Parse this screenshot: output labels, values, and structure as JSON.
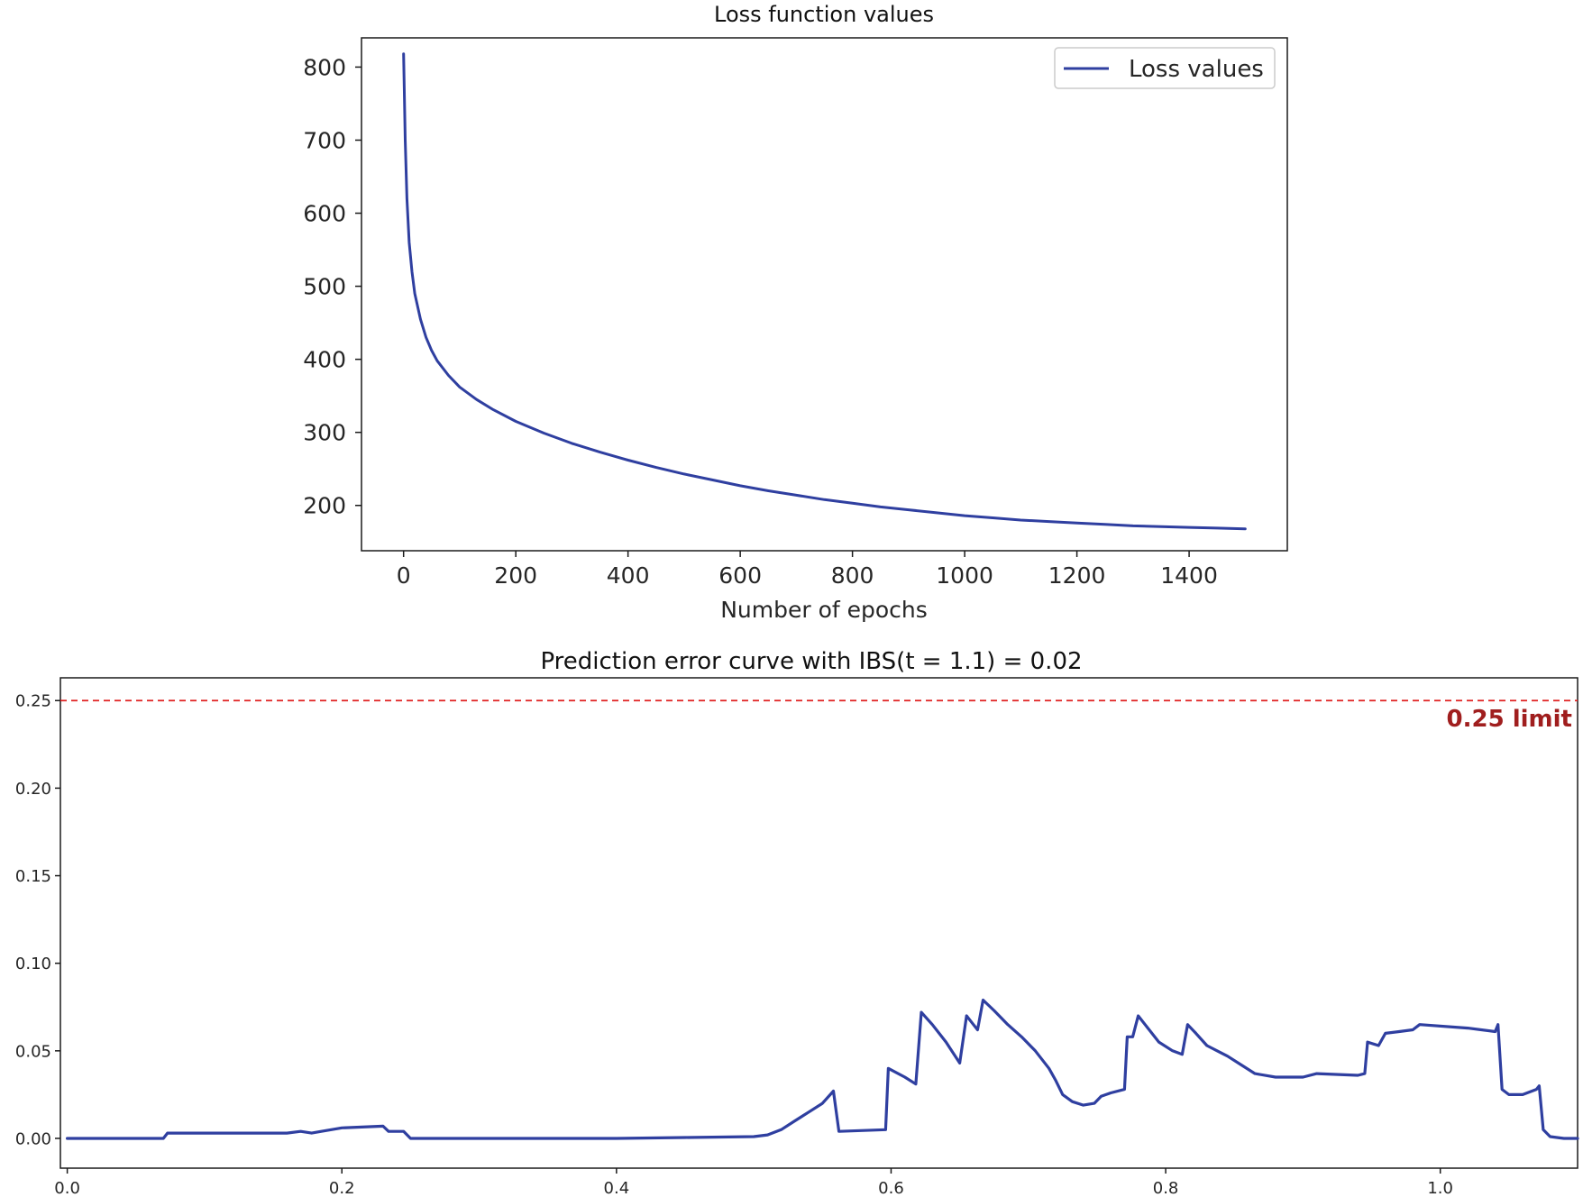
{
  "chart_data": [
    {
      "id": "loss",
      "type": "line",
      "title": "Loss function values",
      "xlabel": "Number of epochs",
      "ylabel": "",
      "xlim": [
        -75,
        1575
      ],
      "ylim": [
        138,
        840
      ],
      "xticks": [
        0,
        200,
        400,
        600,
        800,
        1000,
        1200,
        1400
      ],
      "yticks": [
        200,
        300,
        400,
        500,
        600,
        700,
        800
      ],
      "grid": false,
      "legend_position": "top-right",
      "series": [
        {
          "name": "Loss values",
          "color": "#2f3fa0",
          "points": [
            [
              0,
              818
            ],
            [
              3,
              700
            ],
            [
              6,
              620
            ],
            [
              10,
              560
            ],
            [
              15,
              520
            ],
            [
              20,
              490
            ],
            [
              30,
              455
            ],
            [
              40,
              430
            ],
            [
              50,
              412
            ],
            [
              60,
              398
            ],
            [
              80,
              378
            ],
            [
              100,
              362
            ],
            [
              130,
              345
            ],
            [
              160,
              331
            ],
            [
              200,
              315
            ],
            [
              250,
              299
            ],
            [
              300,
              285
            ],
            [
              350,
              273
            ],
            [
              400,
              262
            ],
            [
              450,
              252
            ],
            [
              500,
              243
            ],
            [
              550,
              235
            ],
            [
              600,
              227
            ],
            [
              650,
              220
            ],
            [
              700,
              214
            ],
            [
              750,
              208
            ],
            [
              800,
              203
            ],
            [
              850,
              198
            ],
            [
              900,
              194
            ],
            [
              950,
              190
            ],
            [
              1000,
              186
            ],
            [
              1050,
              183
            ],
            [
              1100,
              180
            ],
            [
              1150,
              178
            ],
            [
              1200,
              176
            ],
            [
              1250,
              174
            ],
            [
              1300,
              172
            ],
            [
              1350,
              171
            ],
            [
              1400,
              170
            ],
            [
              1450,
              169
            ],
            [
              1500,
              168
            ]
          ]
        }
      ]
    },
    {
      "id": "pec",
      "type": "line",
      "title": "Prediction error curve with IBS(t = 1.1) = 0.02",
      "xlabel": "",
      "ylabel": "",
      "xlim": [
        -0.005,
        1.1
      ],
      "ylim": [
        -0.017,
        0.263
      ],
      "xticks": [
        0.0,
        0.2,
        0.4,
        0.6,
        0.8,
        1.0
      ],
      "yticks": [
        0.0,
        0.05,
        0.1,
        0.15,
        0.2,
        0.25
      ],
      "grid": false,
      "reference_line": {
        "y": 0.25,
        "label": "0.25 limit",
        "color": "#e02020",
        "label_color": "#a01e1e",
        "style": "dashed"
      },
      "series": [
        {
          "name": "",
          "color": "#2f3fa0",
          "points": [
            [
              0.0,
              0.0
            ],
            [
              0.07,
              0.0
            ],
            [
              0.073,
              0.003
            ],
            [
              0.16,
              0.003
            ],
            [
              0.17,
              0.004
            ],
            [
              0.178,
              0.003
            ],
            [
              0.185,
              0.004
            ],
            [
              0.2,
              0.006
            ],
            [
              0.23,
              0.007
            ],
            [
              0.234,
              0.004
            ],
            [
              0.245,
              0.004
            ],
            [
              0.25,
              0.0
            ],
            [
              0.4,
              0.0
            ],
            [
              0.45,
              0.0005
            ],
            [
              0.5,
              0.001
            ],
            [
              0.51,
              0.002
            ],
            [
              0.52,
              0.005
            ],
            [
              0.53,
              0.01
            ],
            [
              0.54,
              0.015
            ],
            [
              0.55,
              0.02
            ],
            [
              0.558,
              0.027
            ],
            [
              0.562,
              0.004
            ],
            [
              0.596,
              0.005
            ],
            [
              0.598,
              0.04
            ],
            [
              0.61,
              0.035
            ],
            [
              0.618,
              0.031
            ],
            [
              0.622,
              0.072
            ],
            [
              0.63,
              0.065
            ],
            [
              0.64,
              0.055
            ],
            [
              0.65,
              0.043
            ],
            [
              0.655,
              0.07
            ],
            [
              0.66,
              0.065
            ],
            [
              0.663,
              0.062
            ],
            [
              0.667,
              0.079
            ],
            [
              0.675,
              0.073
            ],
            [
              0.685,
              0.065
            ],
            [
              0.695,
              0.058
            ],
            [
              0.705,
              0.05
            ],
            [
              0.715,
              0.04
            ],
            [
              0.72,
              0.033
            ],
            [
              0.725,
              0.025
            ],
            [
              0.732,
              0.021
            ],
            [
              0.74,
              0.019
            ],
            [
              0.748,
              0.02
            ],
            [
              0.753,
              0.024
            ],
            [
              0.76,
              0.026
            ],
            [
              0.77,
              0.028
            ],
            [
              0.772,
              0.058
            ],
            [
              0.776,
              0.058
            ],
            [
              0.78,
              0.07
            ],
            [
              0.787,
              0.063
            ],
            [
              0.795,
              0.055
            ],
            [
              0.805,
              0.05
            ],
            [
              0.812,
              0.048
            ],
            [
              0.816,
              0.065
            ],
            [
              0.822,
              0.06
            ],
            [
              0.83,
              0.053
            ],
            [
              0.84,
              0.049
            ],
            [
              0.845,
              0.047
            ],
            [
              0.855,
              0.042
            ],
            [
              0.865,
              0.037
            ],
            [
              0.88,
              0.035
            ],
            [
              0.9,
              0.035
            ],
            [
              0.91,
              0.037
            ],
            [
              0.94,
              0.036
            ],
            [
              0.945,
              0.037
            ],
            [
              0.947,
              0.055
            ],
            [
              0.955,
              0.053
            ],
            [
              0.96,
              0.06
            ],
            [
              0.97,
              0.061
            ],
            [
              0.98,
              0.062
            ],
            [
              0.985,
              0.065
            ],
            [
              1.02,
              0.063
            ],
            [
              1.04,
              0.061
            ],
            [
              1.042,
              0.065
            ],
            [
              1.045,
              0.028
            ],
            [
              1.05,
              0.025
            ],
            [
              1.06,
              0.025
            ],
            [
              1.07,
              0.028
            ],
            [
              1.072,
              0.03
            ],
            [
              1.075,
              0.005
            ],
            [
              1.08,
              0.001
            ],
            [
              1.09,
              0.0
            ],
            [
              1.1,
              0.0
            ]
          ]
        }
      ]
    }
  ]
}
